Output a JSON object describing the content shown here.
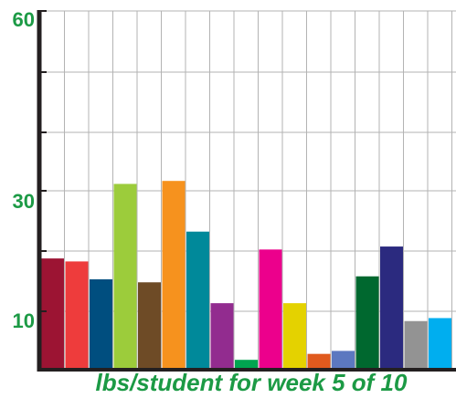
{
  "chart_data": {
    "type": "bar",
    "caption": "lbs/student for week 5 of 10",
    "ytick_labels": [
      "10",
      "30",
      "60"
    ],
    "ytick_values": [
      10,
      30,
      60
    ],
    "ylim": [
      0,
      60
    ],
    "grid": true,
    "values": [
      18.5,
      18,
      15,
      31,
      14.5,
      31.5,
      23,
      11,
      1.5,
      20,
      11,
      2.5,
      3,
      15.5,
      20.5,
      8,
      8.5
    ],
    "colors": [
      "#9c1433",
      "#ee3c3c",
      "#004e7f",
      "#9ccc3b",
      "#6e4b26",
      "#f6921e",
      "#00899a",
      "#922c8f",
      "#00a550",
      "#ec008c",
      "#e4d200",
      "#e05a1e",
      "#5c78c0",
      "#00682f",
      "#2b2a7f",
      "#939393",
      "#00aeef"
    ],
    "caption_color": "#1c9a45",
    "ytick_color": "#1c9a45",
    "axis_color": "#231f20",
    "grid_color": "#b3b3b3"
  }
}
